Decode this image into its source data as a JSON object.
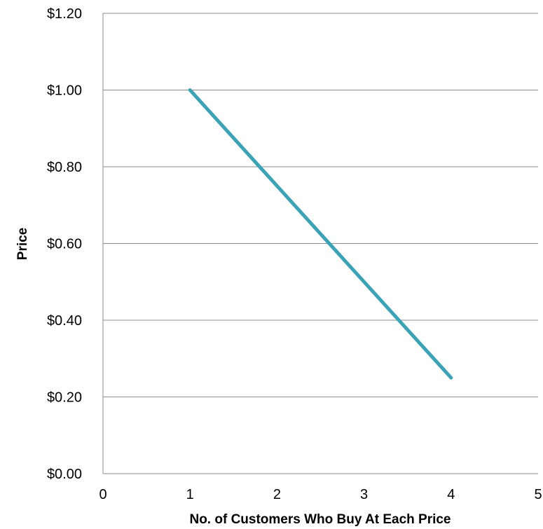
{
  "chart_data": {
    "type": "line",
    "xlabel": "No. of Customers Who Buy At Each Price",
    "ylabel": "Price",
    "xlim": [
      0,
      5
    ],
    "ylim": [
      0,
      1.2
    ],
    "x_ticks": [
      0,
      1,
      2,
      3,
      4,
      5
    ],
    "x_tick_labels": [
      "0",
      "1",
      "2",
      "3",
      "4",
      "5"
    ],
    "y_ticks": [
      0,
      0.2,
      0.4,
      0.6,
      0.8,
      1.0,
      1.2
    ],
    "y_tick_labels": [
      "$0.00",
      "$0.20",
      "$0.40",
      "$0.60",
      "$0.80",
      "$1.00",
      "$1.20"
    ],
    "grid": "horizontal",
    "series": [
      {
        "x": [
          1,
          4
        ],
        "y": [
          1.0,
          0.25
        ],
        "color": "#3aa3b8"
      }
    ]
  }
}
